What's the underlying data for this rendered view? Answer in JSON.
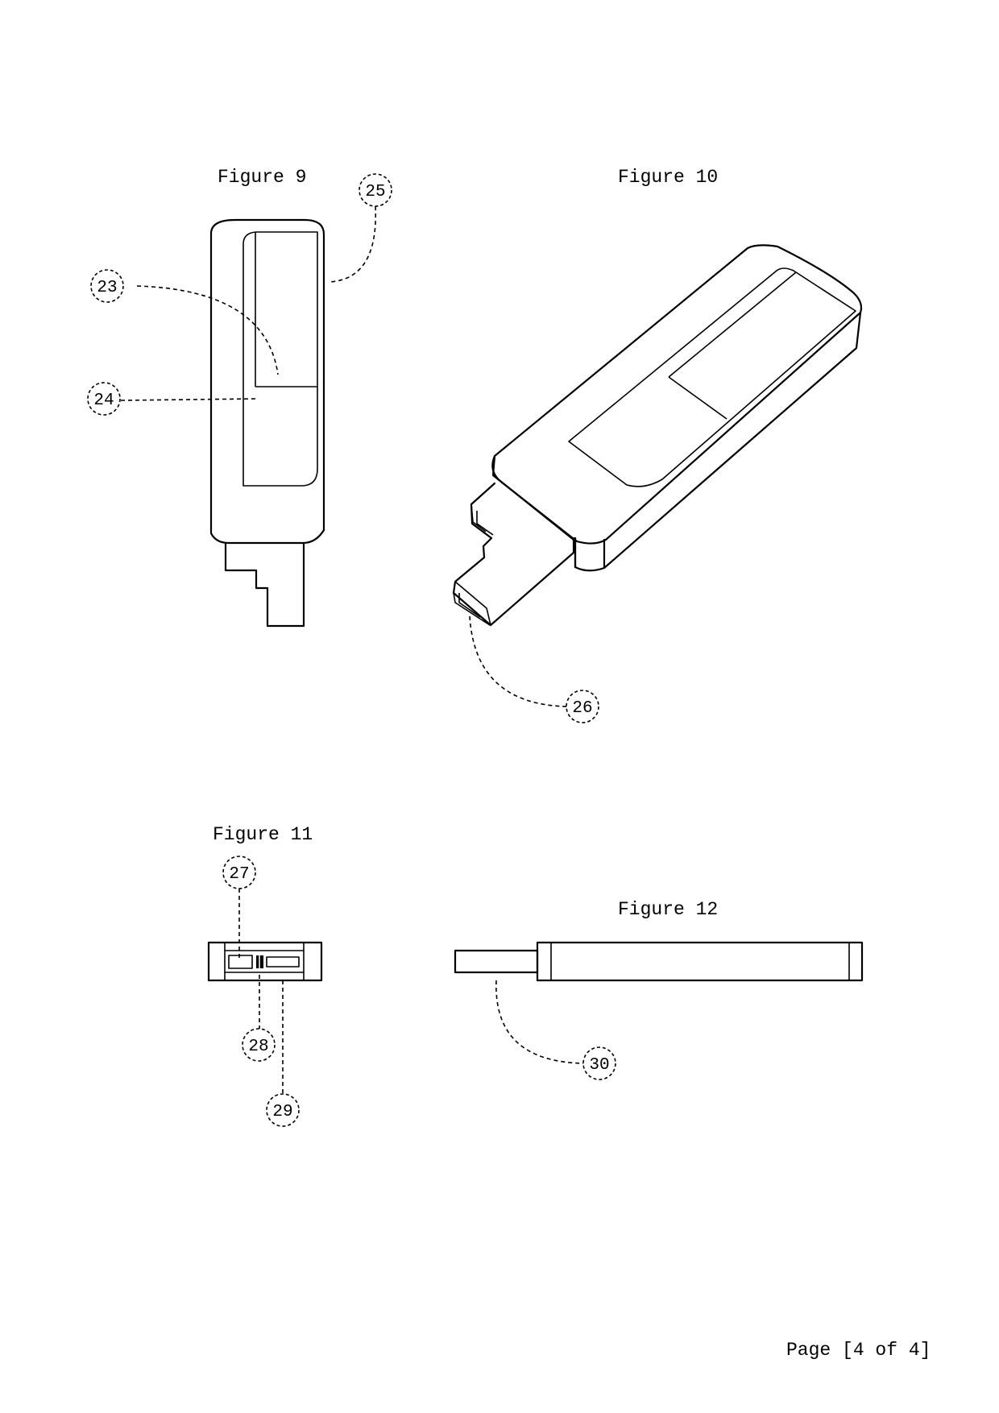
{
  "figures": {
    "fig9": {
      "title": "Figure 9"
    },
    "fig10": {
      "title": "Figure 10"
    },
    "fig11": {
      "title": "Figure 11"
    },
    "fig12": {
      "title": "Figure 12"
    }
  },
  "references": {
    "r23": "23",
    "r24": "24",
    "r25": "25",
    "r26": "26",
    "r27": "27",
    "r28": "28",
    "r29": "29",
    "r30": "30"
  },
  "page_number": "Page [4 of 4]"
}
